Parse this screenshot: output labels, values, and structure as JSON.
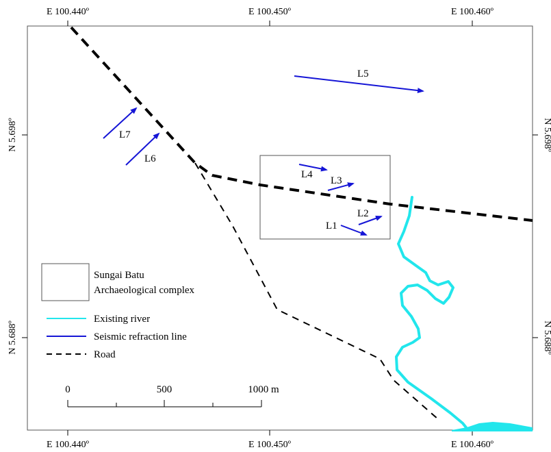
{
  "axis": {
    "top": [
      "E 100.440º",
      "E 100.450º",
      "E 100.460º"
    ],
    "bottom": [
      "E 100.440º",
      "E 100.450º",
      "E 100.460º"
    ],
    "left": [
      "N 5.698º",
      "N 5.688º"
    ],
    "right": [
      "N 5.698º",
      "N 5.688º"
    ]
  },
  "lines": [
    "L1",
    "L2",
    "L3",
    "L4",
    "L5",
    "L6",
    "L7"
  ],
  "legend": {
    "complex_line1": "Sungai Batu",
    "complex_line2": "Archaeological complex",
    "river": "Existing river",
    "seismic": "Seismic refraction line",
    "road": "Road"
  },
  "scale": {
    "ticks": [
      "0",
      "500",
      "1000 m"
    ]
  },
  "colors": {
    "river": "#22e6ec",
    "seismic": "#1515d6",
    "road": "#000000",
    "frame": "#555555"
  }
}
